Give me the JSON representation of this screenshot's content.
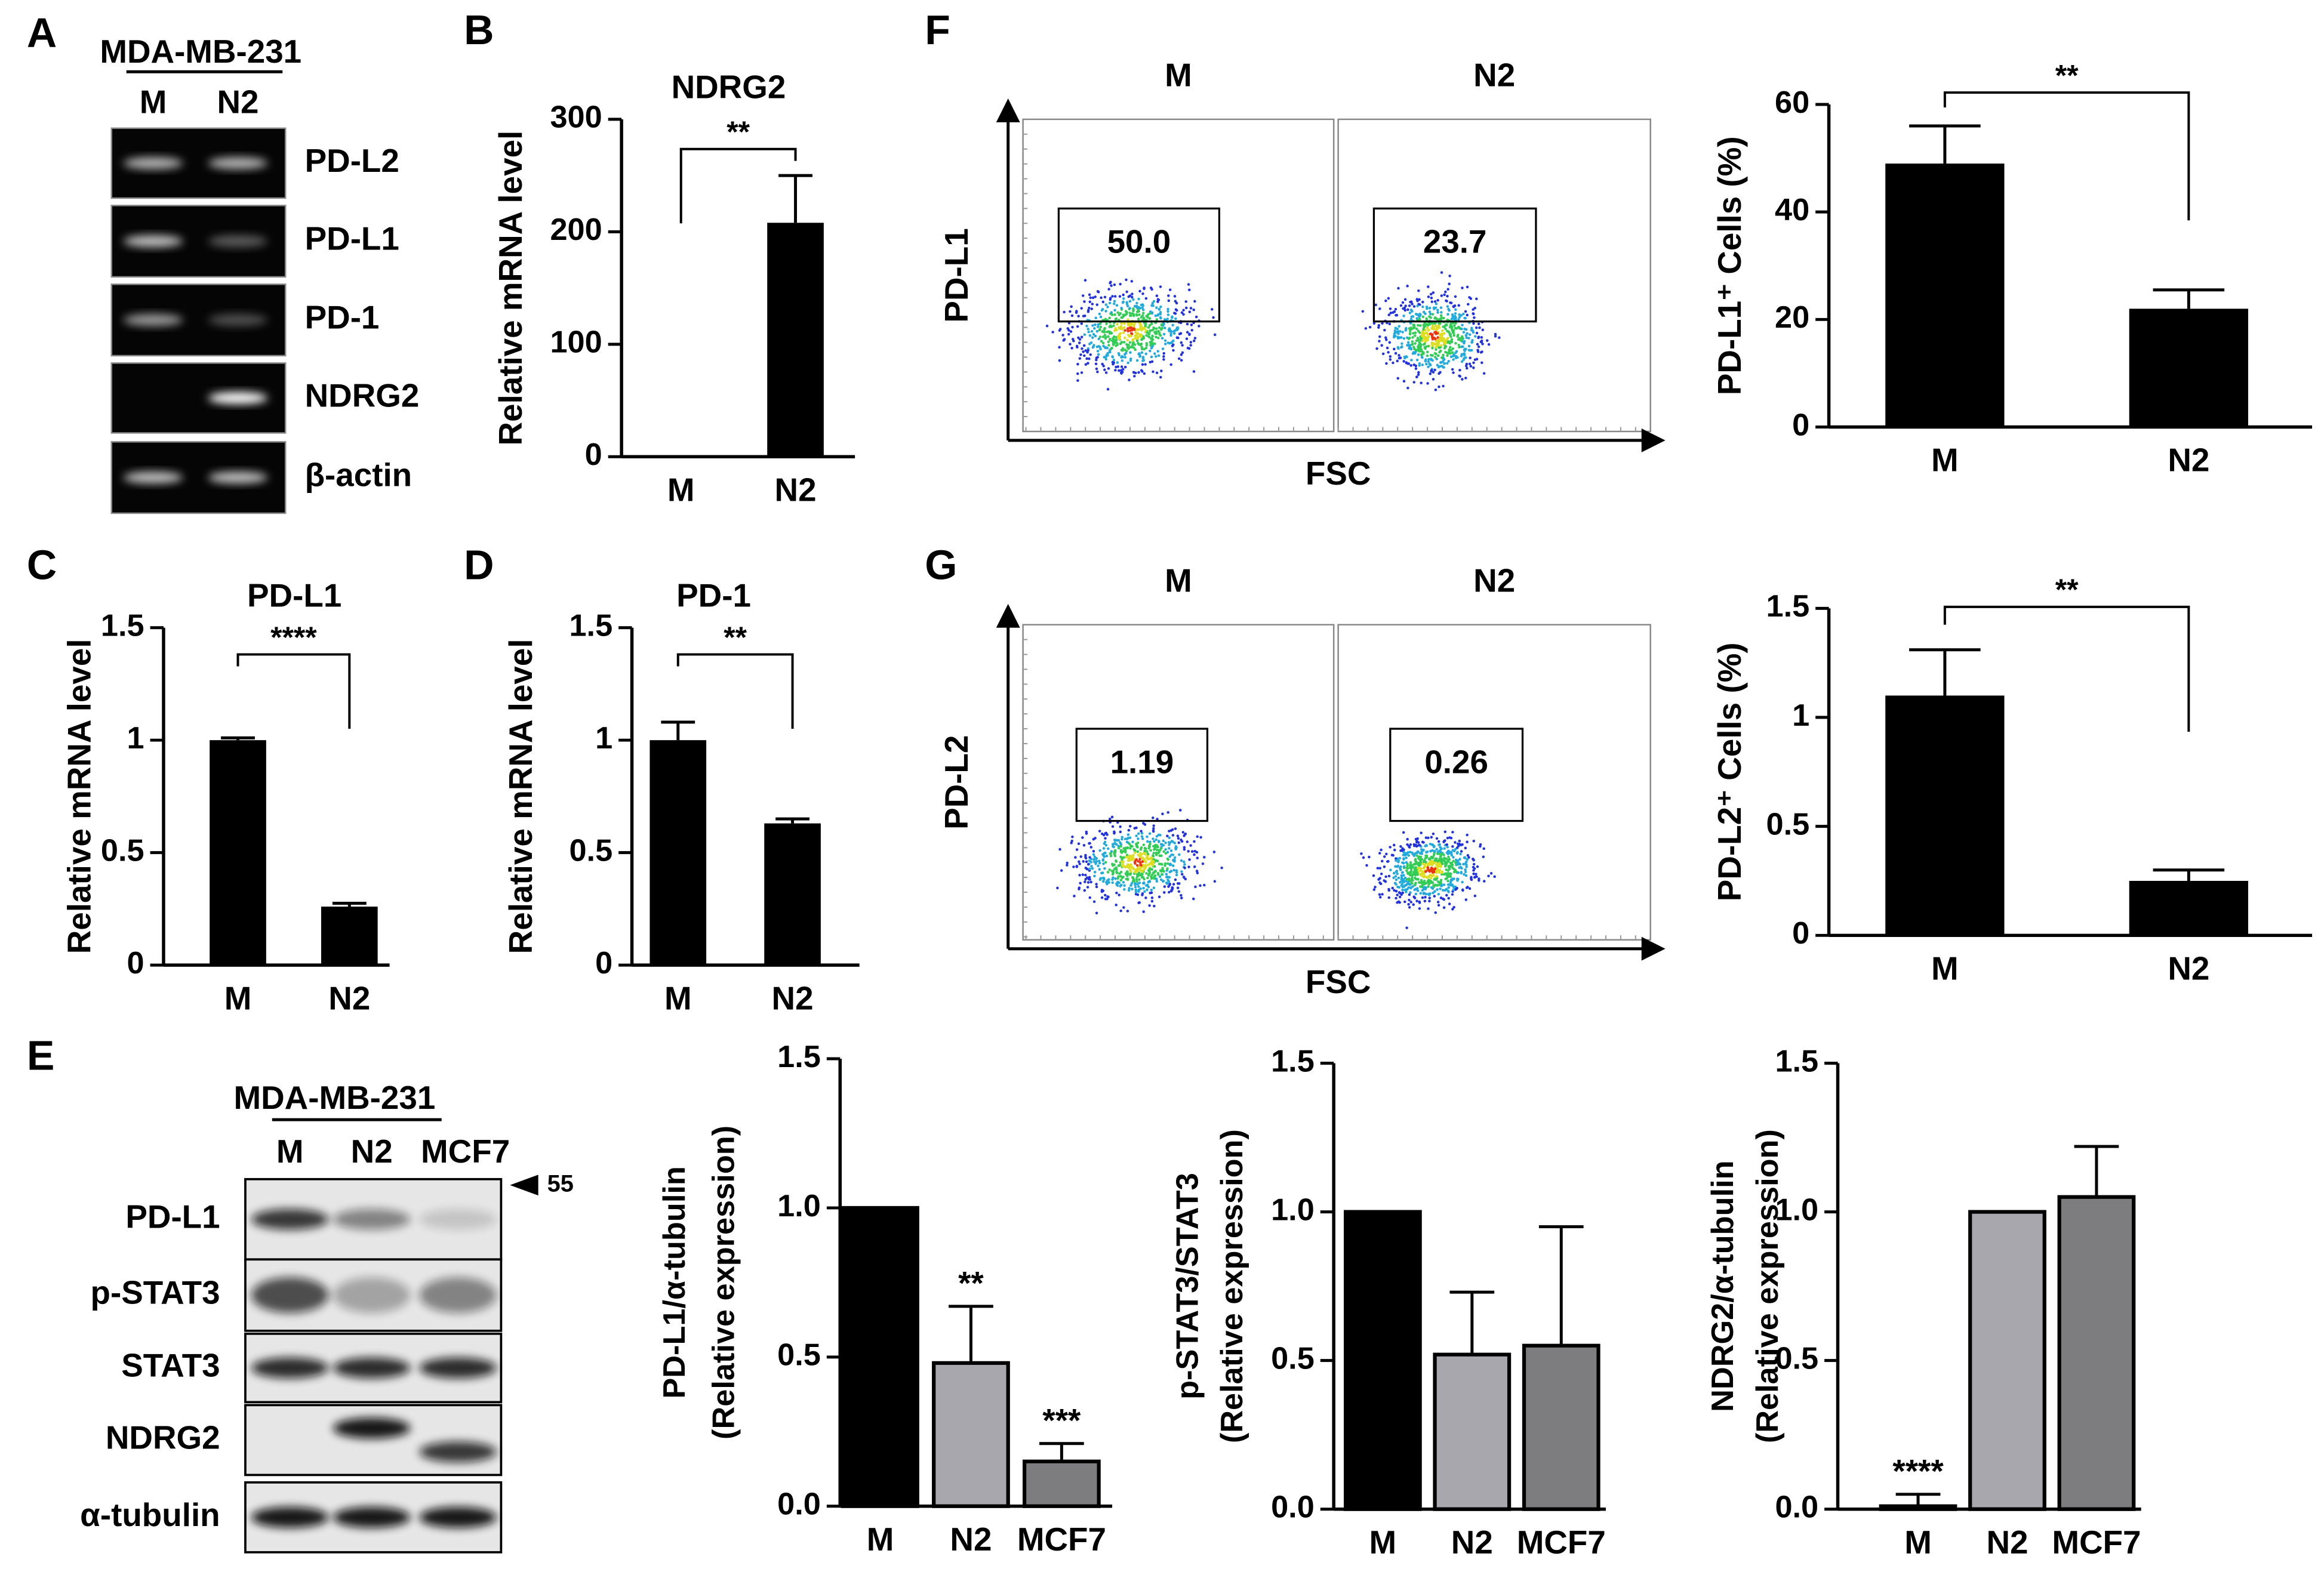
{
  "panel_labels": [
    "A",
    "B",
    "C",
    "D",
    "E",
    "F",
    "G"
  ],
  "blot_a": {
    "cell_line": "MDA-MB-231",
    "lanes": [
      "M",
      "N2"
    ],
    "bands": [
      "PD-L2",
      "PD-L1",
      "PD-1",
      "NDRG2",
      "β-actin"
    ]
  },
  "blot_e": {
    "cell_line": "MDA-MB-231",
    "lanes": [
      "M",
      "N2",
      "MCF7"
    ],
    "marker": "55",
    "bands": [
      "PD-L1",
      "p-STAT3",
      "STAT3",
      "NDRG2",
      "α-tubulin"
    ]
  },
  "flow": [
    {
      "y_label": "PD-L1",
      "x_label": "FSC",
      "lanes": [
        "M",
        "N2"
      ],
      "gates": [
        "50.0",
        "23.7"
      ]
    },
    {
      "y_label": "PD-L2",
      "x_label": "FSC",
      "lanes": [
        "M",
        "N2"
      ],
      "gates": [
        "1.19",
        "0.26"
      ]
    }
  ],
  "chart_data": [
    {
      "type": "bar",
      "title": "NDRG2",
      "y_label": "Relative mRNA level",
      "categories": [
        "M",
        "N2"
      ],
      "values": [
        1,
        208
      ],
      "errors": [
        0,
        42
      ],
      "color": "#000000",
      "ylim": [
        0,
        300
      ],
      "yticks": [
        0,
        100,
        200,
        300
      ],
      "bracket": "**"
    },
    {
      "type": "bar",
      "title": "PD-L1",
      "y_label": "Relative mRNA level",
      "categories": [
        "M",
        "N2"
      ],
      "values": [
        1.0,
        0.26
      ],
      "errors": [
        0.01,
        0.015
      ],
      "color": "#000000",
      "ylim": [
        0,
        1.5
      ],
      "yticks": [
        0,
        0.5,
        1,
        1.5
      ],
      "bracket": "****"
    },
    {
      "type": "bar",
      "title": "PD-1",
      "y_label": "Relative mRNA level",
      "categories": [
        "M",
        "N2"
      ],
      "values": [
        1.0,
        0.63
      ],
      "errors": [
        0.08,
        0.02
      ],
      "color": "#000000",
      "ylim": [
        0,
        1.5
      ],
      "yticks": [
        0,
        0.5,
        1,
        1.5
      ],
      "bracket": "**"
    },
    {
      "type": "bar",
      "y_label": "PD-L1⁺ Cells (%)",
      "categories": [
        "M",
        "N2"
      ],
      "values": [
        49,
        22
      ],
      "errors": [
        7,
        3.5
      ],
      "color": "#000000",
      "ylim": [
        0,
        60
      ],
      "yticks": [
        0,
        20,
        40,
        60
      ],
      "bracket": "**"
    },
    {
      "type": "bar",
      "y_label": "PD-L2⁺ Cells (%)",
      "categories": [
        "M",
        "N2"
      ],
      "values": [
        1.1,
        0.25
      ],
      "errors": [
        0.21,
        0.05
      ],
      "color": "#000000",
      "ylim": [
        0,
        1.5
      ],
      "yticks": [
        0,
        0.5,
        1,
        1.5
      ],
      "bracket": "**"
    },
    {
      "type": "bar",
      "y_label": [
        "PD-L1/α-tubulin",
        "(Relative expression)"
      ],
      "categories": [
        "M",
        "N2",
        "MCF7"
      ],
      "values": [
        1.0,
        0.48,
        0.15
      ],
      "errors": [
        0,
        0.19,
        0.06
      ],
      "colors": [
        "#000000",
        "#a7a7ad",
        "#7d7d7f"
      ],
      "ylim": [
        0,
        1.5
      ],
      "yticks": [
        {
          "value": 0,
          "label": "0.0"
        },
        {
          "value": 0.5,
          "label": "0.5"
        },
        {
          "value": 1,
          "label": "1.0"
        },
        {
          "value": 1.5,
          "label": "1.5"
        }
      ],
      "value_annotations": [
        null,
        "**",
        "***"
      ]
    },
    {
      "type": "bar",
      "y_label": [
        "p-STAT3/STAT3",
        "(Relative expression)"
      ],
      "categories": [
        "M",
        "N2",
        "MCF7"
      ],
      "values": [
        1.0,
        0.52,
        0.55
      ],
      "errors": [
        0,
        0.21,
        0.4
      ],
      "colors": [
        "#000000",
        "#a7a7ad",
        "#7d7d7f"
      ],
      "ylim": [
        0,
        1.5
      ],
      "yticks": [
        {
          "value": 0,
          "label": "0.0"
        },
        {
          "value": 0.5,
          "label": "0.5"
        },
        {
          "value": 1,
          "label": "1.0"
        },
        {
          "value": 1.5,
          "label": "1.5"
        }
      ]
    },
    {
      "type": "bar",
      "y_label": [
        "NDRG2/α-tubulin",
        "(Relative expression)"
      ],
      "categories": [
        "M",
        "N2",
        "MCF7"
      ],
      "values": [
        0.01,
        1.0,
        1.05
      ],
      "errors": [
        0.04,
        0,
        0.17
      ],
      "colors": [
        "#000000",
        "#a7a7ad",
        "#7d7d7f"
      ],
      "ylim": [
        0,
        1.5
      ],
      "yticks": [
        {
          "value": 0,
          "label": "0.0"
        },
        {
          "value": 0.5,
          "label": "0.5"
        },
        {
          "value": 1,
          "label": "1.0"
        },
        {
          "value": 1.5,
          "label": "1.5"
        }
      ],
      "value_annotations": [
        "****",
        null,
        null
      ]
    }
  ]
}
